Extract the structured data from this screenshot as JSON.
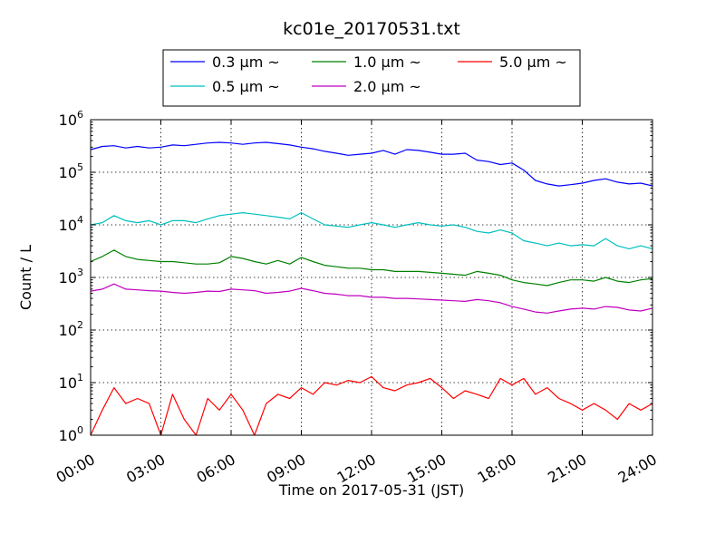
{
  "chart_data": {
    "type": "line",
    "title": "kc01e_20170531.txt",
    "xlabel": "Time on 2017-05-31 (JST)",
    "ylabel": "Count / L",
    "yscale": "log",
    "ylim": [
      1,
      1000000
    ],
    "xlim": [
      "00:00",
      "24:00"
    ],
    "x_ticks": [
      "00:00",
      "03:00",
      "06:00",
      "09:00",
      "12:00",
      "15:00",
      "18:00",
      "21:00",
      "24:00"
    ],
    "y_ticks": [
      {
        "base": "10",
        "exp": "0",
        "value": 1
      },
      {
        "base": "10",
        "exp": "1",
        "value": 10
      },
      {
        "base": "10",
        "exp": "2",
        "value": 100
      },
      {
        "base": "10",
        "exp": "3",
        "value": 1000
      },
      {
        "base": "10",
        "exp": "4",
        "value": 10000
      },
      {
        "base": "10",
        "exp": "5",
        "value": 100000
      },
      {
        "base": "10",
        "exp": "6",
        "value": 1000000
      }
    ],
    "grid": true,
    "legend_position": "top-center",
    "x": [
      "00:00",
      "00:30",
      "01:00",
      "01:30",
      "02:00",
      "02:30",
      "03:00",
      "03:30",
      "04:00",
      "04:30",
      "05:00",
      "05:30",
      "06:00",
      "06:30",
      "07:00",
      "07:30",
      "08:00",
      "08:30",
      "09:00",
      "09:30",
      "10:00",
      "10:30",
      "11:00",
      "11:30",
      "12:00",
      "12:30",
      "13:00",
      "13:30",
      "14:00",
      "14:30",
      "15:00",
      "15:30",
      "16:00",
      "16:30",
      "17:00",
      "17:30",
      "18:00",
      "18:30",
      "19:00",
      "19:30",
      "20:00",
      "20:30",
      "21:00",
      "21:30",
      "22:00",
      "22:30",
      "23:00",
      "23:30",
      "24:00"
    ],
    "series": [
      {
        "name": "0.3 μm ~",
        "color": "#0000ff",
        "values": [
          270000,
          310000,
          320000,
          290000,
          310000,
          290000,
          300000,
          330000,
          320000,
          340000,
          360000,
          370000,
          360000,
          340000,
          360000,
          370000,
          350000,
          330000,
          300000,
          280000,
          250000,
          230000,
          210000,
          220000,
          230000,
          260000,
          220000,
          270000,
          260000,
          240000,
          220000,
          220000,
          230000,
          170000,
          160000,
          140000,
          150000,
          110000,
          70000,
          60000,
          55000,
          58000,
          62000,
          70000,
          75000,
          65000,
          60000,
          62000,
          55000
        ]
      },
      {
        "name": "0.5 μm ~",
        "color": "#00bfbf",
        "values": [
          10000,
          11000,
          15000,
          12000,
          11000,
          12000,
          10000,
          12000,
          12000,
          11000,
          13000,
          15000,
          16000,
          17000,
          16000,
          15000,
          14000,
          13000,
          17000,
          13000,
          10000,
          9500,
          9000,
          10000,
          11000,
          10000,
          9000,
          10000,
          11000,
          10000,
          9500,
          10000,
          9000,
          7500,
          7000,
          8000,
          7000,
          5000,
          4500,
          4000,
          4500,
          4000,
          4200,
          4000,
          5500,
          4000,
          3500,
          4000,
          3500
        ]
      },
      {
        "name": "1.0 μm ~",
        "color": "#008000",
        "values": [
          2000,
          2500,
          3300,
          2500,
          2200,
          2100,
          2000,
          2000,
          1900,
          1800,
          1800,
          1900,
          2500,
          2300,
          2000,
          1800,
          2100,
          1800,
          2400,
          2000,
          1700,
          1600,
          1500,
          1500,
          1400,
          1400,
          1300,
          1300,
          1300,
          1250,
          1200,
          1150,
          1100,
          1300,
          1200,
          1100,
          900,
          800,
          750,
          700,
          800,
          900,
          900,
          850,
          1000,
          850,
          800,
          900,
          950
        ]
      },
      {
        "name": "2.0 μm ~",
        "color": "#bf00bf",
        "values": [
          550,
          600,
          750,
          600,
          580,
          560,
          550,
          520,
          500,
          520,
          550,
          540,
          600,
          580,
          560,
          500,
          520,
          550,
          620,
          560,
          500,
          480,
          450,
          450,
          420,
          420,
          400,
          400,
          390,
          380,
          370,
          360,
          350,
          380,
          360,
          330,
          280,
          250,
          220,
          210,
          230,
          250,
          260,
          250,
          280,
          270,
          240,
          230,
          260
        ]
      },
      {
        "name": "5.0 μm ~",
        "color": "#ff0000",
        "values": [
          1,
          3,
          8,
          4,
          5,
          4,
          1,
          6,
          2,
          1,
          5,
          3,
          6,
          3,
          1,
          4,
          6,
          5,
          8,
          6,
          10,
          9,
          11,
          10,
          13,
          8,
          7,
          9,
          10,
          12,
          8,
          5,
          7,
          6,
          5,
          12,
          9,
          12,
          6,
          8,
          5,
          4,
          3,
          4,
          3,
          2,
          4,
          3,
          4
        ]
      }
    ]
  }
}
